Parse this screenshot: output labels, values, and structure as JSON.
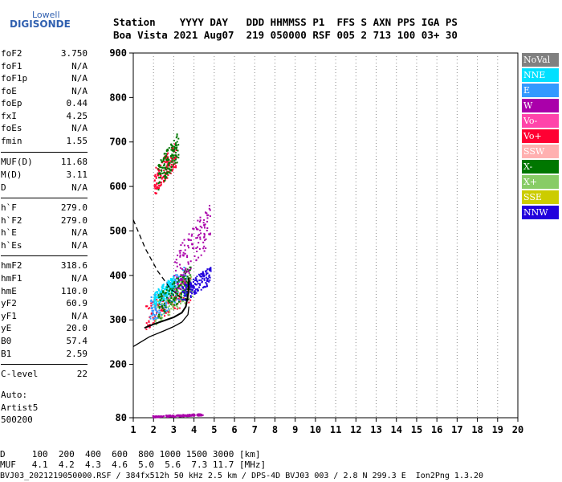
{
  "logo": {
    "top": "Lowell",
    "main": "DIGISONDE"
  },
  "header": {
    "row1": "Station    YYYY DAY   DDD HHMMSS P1  FFS S AXN PPS IGA PS",
    "row2": "Boa Vista 2021 Aug07  219 050000 RSF 005 2 713 100 03+ 30"
  },
  "params": [
    {
      "name": "foF2",
      "value": "3.750"
    },
    {
      "name": "foF1",
      "value": "N/A"
    },
    {
      "name": "foF1p",
      "value": "N/A"
    },
    {
      "name": "foE",
      "value": "N/A"
    },
    {
      "name": "foEp",
      "value": "0.44"
    },
    {
      "name": "fxI",
      "value": "4.25"
    },
    {
      "name": "foEs",
      "value": "N/A"
    },
    {
      "name": "fmin",
      "value": "1.55"
    },
    {
      "name": "MUF(D)",
      "value": "11.68"
    },
    {
      "name": "M(D)",
      "value": "3.11"
    },
    {
      "name": "D",
      "value": "N/A"
    },
    {
      "name": "h`F",
      "value": "279.0"
    },
    {
      "name": "h`F2",
      "value": "279.0"
    },
    {
      "name": "h`E",
      "value": "N/A"
    },
    {
      "name": "h`Es",
      "value": "N/A"
    },
    {
      "name": "hmF2",
      "value": "318.6"
    },
    {
      "name": "hmF1",
      "value": "N/A"
    },
    {
      "name": "hmE",
      "value": "110.0"
    },
    {
      "name": "yF2",
      "value": "60.9"
    },
    {
      "name": "yF1",
      "value": "N/A"
    },
    {
      "name": "yE",
      "value": "20.0"
    },
    {
      "name": "B0",
      "value": "57.4"
    },
    {
      "name": "B1",
      "value": "2.59"
    },
    {
      "name": "C-level",
      "value": "22"
    }
  ],
  "auto": {
    "line1": "Auto:",
    "line2": "Artist5",
    "line3": "500200"
  },
  "legend": [
    {
      "label": "NoVal",
      "bg": "#808080",
      "fg": "#ffffff"
    },
    {
      "label": "NNE",
      "bg": "#00e0ff",
      "fg": "#ffffff"
    },
    {
      "label": "E",
      "bg": "#3399ff",
      "fg": "#ffffff"
    },
    {
      "label": "W",
      "bg": "#aa00aa",
      "fg": "#ffffff"
    },
    {
      "label": "Vo-",
      "bg": "#ff44aa",
      "fg": "#ffffff"
    },
    {
      "label": "Vo+",
      "bg": "#ff0033",
      "fg": "#ffffff"
    },
    {
      "label": "SSW",
      "bg": "#ffb0b0",
      "fg": "#ffffff"
    },
    {
      "label": "X-",
      "bg": "#007700",
      "fg": "#ffffff"
    },
    {
      "label": "X+",
      "bg": "#88cc66",
      "fg": "#ffffff"
    },
    {
      "label": "SSE",
      "bg": "#cccc00",
      "fg": "#ffffff"
    },
    {
      "label": "NNW",
      "bg": "#2200dd",
      "fg": "#ffffff"
    }
  ],
  "footer": {
    "line1": "D     100  200  400  600  800 1000 1500 3000 [km]",
    "line2": "MUF   4.1  4.2  4.3  4.6  5.0  5.6  7.3 11.7 [MHz]",
    "line3": "BVJ03_2021219050000.RSF / 384fx512h 50 kHz 2.5 km / DPS-4D BVJ03 003 / 2.8 N 299.3 E  Ion2Png 1.3.20"
  },
  "chart_data": {
    "type": "scatter",
    "xlim": [
      1,
      20
    ],
    "ylim": [
      80,
      900
    ],
    "x_ticks": [
      1,
      2,
      3,
      4,
      5,
      6,
      7,
      8,
      9,
      10,
      11,
      12,
      13,
      14,
      15,
      16,
      17,
      18,
      19,
      20
    ],
    "y_ticks": [
      80,
      200,
      300,
      400,
      500,
      600,
      700,
      800,
      900
    ],
    "grid": "dotted-vertical",
    "clusters": [
      {
        "color": "#ff0033",
        "x": [
          1.6,
          3.8
        ],
        "y": [
          280,
          395
        ]
      },
      {
        "color": "#88cc66",
        "x": [
          2.0,
          3.9
        ],
        "y": [
          285,
          410
        ]
      },
      {
        "color": "#3399ff",
        "x": [
          1.8,
          3.6
        ],
        "y": [
          290,
          420
        ]
      },
      {
        "color": "#00e0ff",
        "x": [
          2.0,
          3.0
        ],
        "y": [
          330,
          400
        ]
      },
      {
        "color": "#007700",
        "x": [
          2.2,
          3.8
        ],
        "y": [
          300,
          420
        ]
      },
      {
        "color": "#aa00aa",
        "x": [
          3.0,
          4.8
        ],
        "y": [
          350,
          560
        ]
      },
      {
        "color": "#2200dd",
        "x": [
          3.4,
          4.8
        ],
        "y": [
          340,
          420
        ]
      },
      {
        "color": "#ff0033",
        "x": [
          2.0,
          3.1
        ],
        "y": [
          580,
          700
        ]
      },
      {
        "color": "#007700",
        "x": [
          2.2,
          3.2
        ],
        "y": [
          590,
          720
        ]
      },
      {
        "color": "#aa00aa",
        "x": [
          1.9,
          4.4
        ],
        "y": [
          82,
          90
        ]
      }
    ],
    "profile_curve": [
      [
        1.55,
        282
      ],
      [
        2.0,
        290
      ],
      [
        2.5,
        298
      ],
      [
        3.0,
        306
      ],
      [
        3.4,
        316
      ],
      [
        3.6,
        330
      ],
      [
        3.72,
        360
      ],
      [
        3.75,
        395
      ]
    ],
    "dashed_curve": [
      [
        1.0,
        525
      ],
      [
        1.6,
        460
      ],
      [
        2.2,
        410
      ],
      [
        2.8,
        372
      ],
      [
        3.3,
        352
      ],
      [
        3.75,
        345
      ]
    ],
    "lower_curve": [
      [
        1.0,
        240
      ],
      [
        1.8,
        262
      ],
      [
        2.5,
        275
      ],
      [
        3.0,
        285
      ],
      [
        3.4,
        295
      ],
      [
        3.7,
        312
      ],
      [
        3.75,
        330
      ]
    ]
  }
}
